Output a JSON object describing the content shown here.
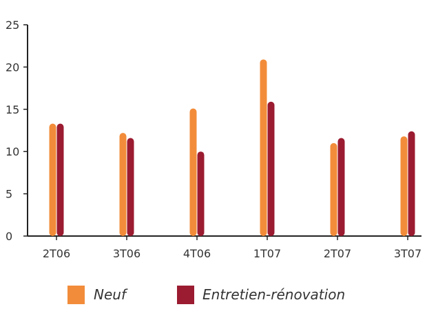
{
  "chart_data": {
    "type": "bar",
    "categories": [
      "2T06",
      "3T06",
      "4T06",
      "1T07",
      "2T07",
      "3T07"
    ],
    "series": [
      {
        "name": "Neuf",
        "color": "#F28C3A",
        "values": [
          13.3,
          12.2,
          15.1,
          20.9,
          11.0,
          11.8
        ]
      },
      {
        "name": "Entretien-rénovation",
        "color": "#9B1B30",
        "values": [
          13.3,
          11.6,
          10.0,
          15.9,
          11.6,
          12.4
        ]
      }
    ],
    "ylim": [
      0,
      25
    ],
    "yticks": [
      0,
      5,
      10,
      15,
      20,
      25
    ],
    "ytick_labels": [
      "0",
      "5",
      "10",
      "15",
      "20",
      "25"
    ],
    "title": "",
    "xlabel": "",
    "ylabel": "",
    "grid": false,
    "legend_position": "bottom"
  }
}
